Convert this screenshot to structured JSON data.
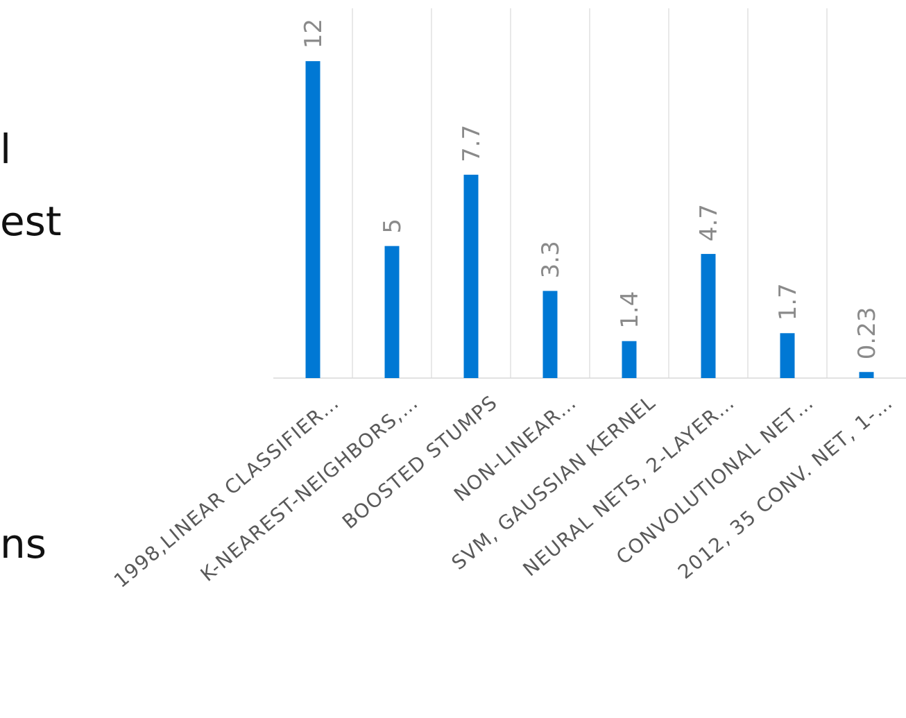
{
  "slide_fragments": {
    "line1": "l",
    "line2": "est",
    "line3": "ns"
  },
  "chart_data": {
    "type": "bar",
    "categories": [
      "1998,LINEAR CLASSIFIER…",
      "K-NEAREST-NEIGHBORS,…",
      "BOOSTED STUMPS",
      "NON-LINEAR…",
      "SVM, GAUSSIAN KERNEL",
      "NEURAL NETS, 2-LAYER…",
      "CONVOLUTIONAL NET…",
      "2012, 35 CONV. NET, 1-…"
    ],
    "values": [
      12,
      5,
      7.7,
      3.3,
      1.4,
      4.7,
      1.7,
      0.23
    ],
    "value_labels": [
      "12",
      "5",
      "7.7",
      "3.3",
      "1.4",
      "4.7",
      "1.7",
      "0.23"
    ],
    "ylim": [
      0,
      14
    ],
    "grid": "vertical",
    "bar_color": "#0078d4"
  }
}
